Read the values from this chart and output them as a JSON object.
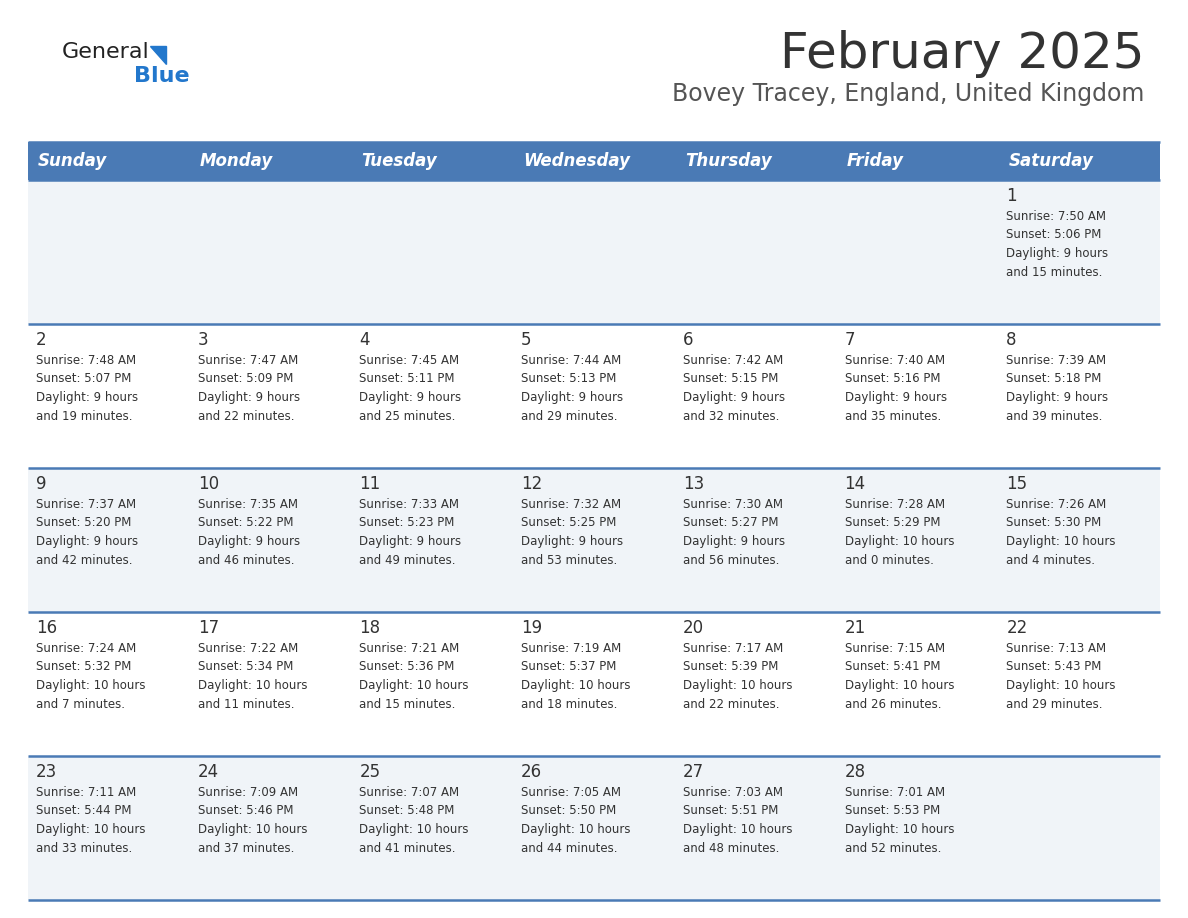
{
  "title": "February 2025",
  "subtitle": "Bovey Tracey, England, United Kingdom",
  "days_of_week": [
    "Sunday",
    "Monday",
    "Tuesday",
    "Wednesday",
    "Thursday",
    "Friday",
    "Saturday"
  ],
  "header_bg": "#4a7ab5",
  "header_text": "#ffffff",
  "row_bg_light": "#f0f4f8",
  "row_bg_white": "#ffffff",
  "separator_color": "#4a7ab5",
  "cell_text_color": "#333333",
  "day_num_color": "#333333",
  "title_color": "#333333",
  "subtitle_color": "#555555",
  "logo_general_color": "#222222",
  "logo_blue_color": "#2277cc",
  "logo_triangle_color": "#2277cc",
  "calendar_data": [
    [
      {
        "day": null,
        "sunrise": null,
        "sunset": null,
        "daylight": null
      },
      {
        "day": null,
        "sunrise": null,
        "sunset": null,
        "daylight": null
      },
      {
        "day": null,
        "sunrise": null,
        "sunset": null,
        "daylight": null
      },
      {
        "day": null,
        "sunrise": null,
        "sunset": null,
        "daylight": null
      },
      {
        "day": null,
        "sunrise": null,
        "sunset": null,
        "daylight": null
      },
      {
        "day": null,
        "sunrise": null,
        "sunset": null,
        "daylight": null
      },
      {
        "day": 1,
        "sunrise": "7:50 AM",
        "sunset": "5:06 PM",
        "daylight": "9 hours\nand 15 minutes."
      }
    ],
    [
      {
        "day": 2,
        "sunrise": "7:48 AM",
        "sunset": "5:07 PM",
        "daylight": "9 hours\nand 19 minutes."
      },
      {
        "day": 3,
        "sunrise": "7:47 AM",
        "sunset": "5:09 PM",
        "daylight": "9 hours\nand 22 minutes."
      },
      {
        "day": 4,
        "sunrise": "7:45 AM",
        "sunset": "5:11 PM",
        "daylight": "9 hours\nand 25 minutes."
      },
      {
        "day": 5,
        "sunrise": "7:44 AM",
        "sunset": "5:13 PM",
        "daylight": "9 hours\nand 29 minutes."
      },
      {
        "day": 6,
        "sunrise": "7:42 AM",
        "sunset": "5:15 PM",
        "daylight": "9 hours\nand 32 minutes."
      },
      {
        "day": 7,
        "sunrise": "7:40 AM",
        "sunset": "5:16 PM",
        "daylight": "9 hours\nand 35 minutes."
      },
      {
        "day": 8,
        "sunrise": "7:39 AM",
        "sunset": "5:18 PM",
        "daylight": "9 hours\nand 39 minutes."
      }
    ],
    [
      {
        "day": 9,
        "sunrise": "7:37 AM",
        "sunset": "5:20 PM",
        "daylight": "9 hours\nand 42 minutes."
      },
      {
        "day": 10,
        "sunrise": "7:35 AM",
        "sunset": "5:22 PM",
        "daylight": "9 hours\nand 46 minutes."
      },
      {
        "day": 11,
        "sunrise": "7:33 AM",
        "sunset": "5:23 PM",
        "daylight": "9 hours\nand 49 minutes."
      },
      {
        "day": 12,
        "sunrise": "7:32 AM",
        "sunset": "5:25 PM",
        "daylight": "9 hours\nand 53 minutes."
      },
      {
        "day": 13,
        "sunrise": "7:30 AM",
        "sunset": "5:27 PM",
        "daylight": "9 hours\nand 56 minutes."
      },
      {
        "day": 14,
        "sunrise": "7:28 AM",
        "sunset": "5:29 PM",
        "daylight": "10 hours\nand 0 minutes."
      },
      {
        "day": 15,
        "sunrise": "7:26 AM",
        "sunset": "5:30 PM",
        "daylight": "10 hours\nand 4 minutes."
      }
    ],
    [
      {
        "day": 16,
        "sunrise": "7:24 AM",
        "sunset": "5:32 PM",
        "daylight": "10 hours\nand 7 minutes."
      },
      {
        "day": 17,
        "sunrise": "7:22 AM",
        "sunset": "5:34 PM",
        "daylight": "10 hours\nand 11 minutes."
      },
      {
        "day": 18,
        "sunrise": "7:21 AM",
        "sunset": "5:36 PM",
        "daylight": "10 hours\nand 15 minutes."
      },
      {
        "day": 19,
        "sunrise": "7:19 AM",
        "sunset": "5:37 PM",
        "daylight": "10 hours\nand 18 minutes."
      },
      {
        "day": 20,
        "sunrise": "7:17 AM",
        "sunset": "5:39 PM",
        "daylight": "10 hours\nand 22 minutes."
      },
      {
        "day": 21,
        "sunrise": "7:15 AM",
        "sunset": "5:41 PM",
        "daylight": "10 hours\nand 26 minutes."
      },
      {
        "day": 22,
        "sunrise": "7:13 AM",
        "sunset": "5:43 PM",
        "daylight": "10 hours\nand 29 minutes."
      }
    ],
    [
      {
        "day": 23,
        "sunrise": "7:11 AM",
        "sunset": "5:44 PM",
        "daylight": "10 hours\nand 33 minutes."
      },
      {
        "day": 24,
        "sunrise": "7:09 AM",
        "sunset": "5:46 PM",
        "daylight": "10 hours\nand 37 minutes."
      },
      {
        "day": 25,
        "sunrise": "7:07 AM",
        "sunset": "5:48 PM",
        "daylight": "10 hours\nand 41 minutes."
      },
      {
        "day": 26,
        "sunrise": "7:05 AM",
        "sunset": "5:50 PM",
        "daylight": "10 hours\nand 44 minutes."
      },
      {
        "day": 27,
        "sunrise": "7:03 AM",
        "sunset": "5:51 PM",
        "daylight": "10 hours\nand 48 minutes."
      },
      {
        "day": 28,
        "sunrise": "7:01 AM",
        "sunset": "5:53 PM",
        "daylight": "10 hours\nand 52 minutes."
      },
      {
        "day": null,
        "sunrise": null,
        "sunset": null,
        "daylight": null
      }
    ]
  ]
}
